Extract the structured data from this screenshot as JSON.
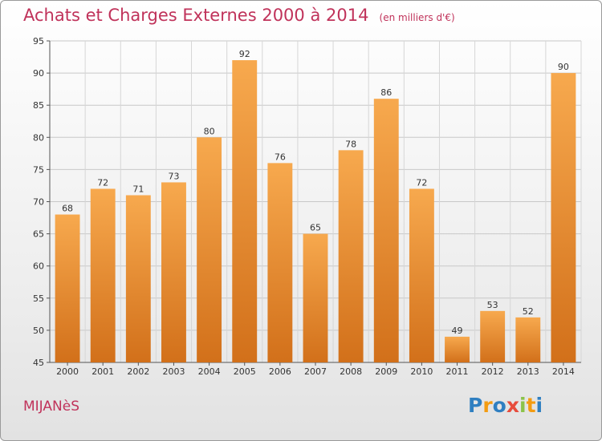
{
  "title": "Achats et Charges Externes 2000 à 2014",
  "unit": "(en milliers d'€)",
  "commune": "MIJANèS",
  "logo": {
    "letters": [
      "P",
      "r",
      "o",
      "x",
      "i",
      "t",
      "i"
    ],
    "colors": [
      "#2f7fc1",
      "#f39c12",
      "#2f7fc1",
      "#e74c3c",
      "#8bc34a",
      "#f39c12",
      "#2f7fc1"
    ]
  },
  "colors": {
    "bar_light": "#f7a94e",
    "bar_dark": "#d2701a",
    "title": "#c0325a"
  },
  "chart_data": {
    "type": "bar",
    "categories": [
      "2000",
      "2001",
      "2002",
      "2003",
      "2004",
      "2005",
      "2006",
      "2007",
      "2008",
      "2009",
      "2010",
      "2011",
      "2012",
      "2013",
      "2014"
    ],
    "values": [
      68,
      72,
      71,
      73,
      80,
      92,
      76,
      65,
      78,
      86,
      72,
      49,
      53,
      52,
      90
    ],
    "ylim": [
      45,
      95
    ],
    "yticks": [
      45,
      50,
      55,
      60,
      65,
      70,
      75,
      80,
      85,
      90,
      95
    ],
    "grid": true
  }
}
